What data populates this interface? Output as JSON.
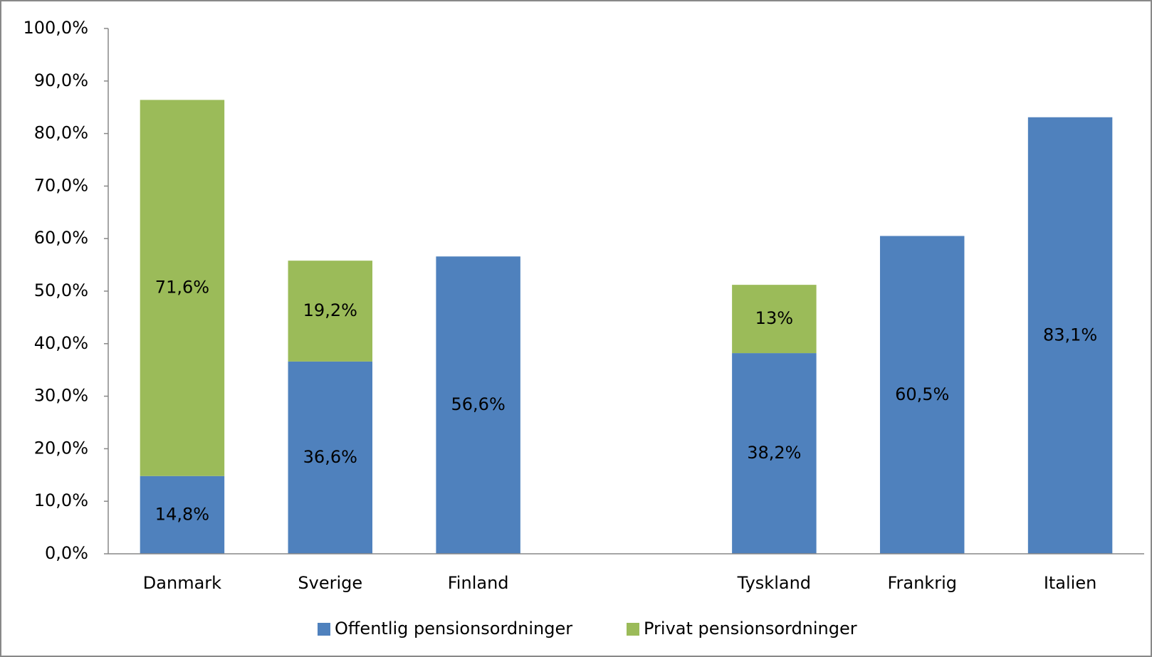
{
  "chart_data": {
    "type": "stacked_bar",
    "categories": [
      "Danmark",
      "Sverige",
      "Finland",
      null,
      "Tyskland",
      "Frankrig",
      "Italien"
    ],
    "series": [
      {
        "name": "Offentlig pensionsordninger",
        "color": "#4f81bd",
        "values": [
          14.8,
          36.6,
          56.6,
          null,
          38.2,
          60.5,
          83.1
        ],
        "value_labels": [
          "14,8%",
          "36,6%",
          "56,6%",
          null,
          "38,2%",
          "60,5%",
          "83,1%"
        ]
      },
      {
        "name": "Privat pensionsordninger",
        "color": "#9bbb59",
        "values": [
          71.6,
          19.2,
          null,
          null,
          13,
          null,
          null
        ],
        "value_labels": [
          "71,6%",
          "19,2%",
          null,
          null,
          "13%",
          null,
          null
        ]
      }
    ],
    "ylim": [
      0,
      100
    ],
    "yticks": [
      {
        "value": 0,
        "label": "0,0%"
      },
      {
        "value": 10,
        "label": "10,0%"
      },
      {
        "value": 20,
        "label": "20,0%"
      },
      {
        "value": 30,
        "label": "30,0%"
      },
      {
        "value": 40,
        "label": "40,0%"
      },
      {
        "value": 50,
        "label": "50,0%"
      },
      {
        "value": 60,
        "label": "60,0%"
      },
      {
        "value": 70,
        "label": "70,0%"
      },
      {
        "value": 80,
        "label": "80,0%"
      },
      {
        "value": 90,
        "label": "90,0%"
      },
      {
        "value": 100,
        "label": "100,0%"
      }
    ],
    "grid": false,
    "legend": "bottom"
  }
}
